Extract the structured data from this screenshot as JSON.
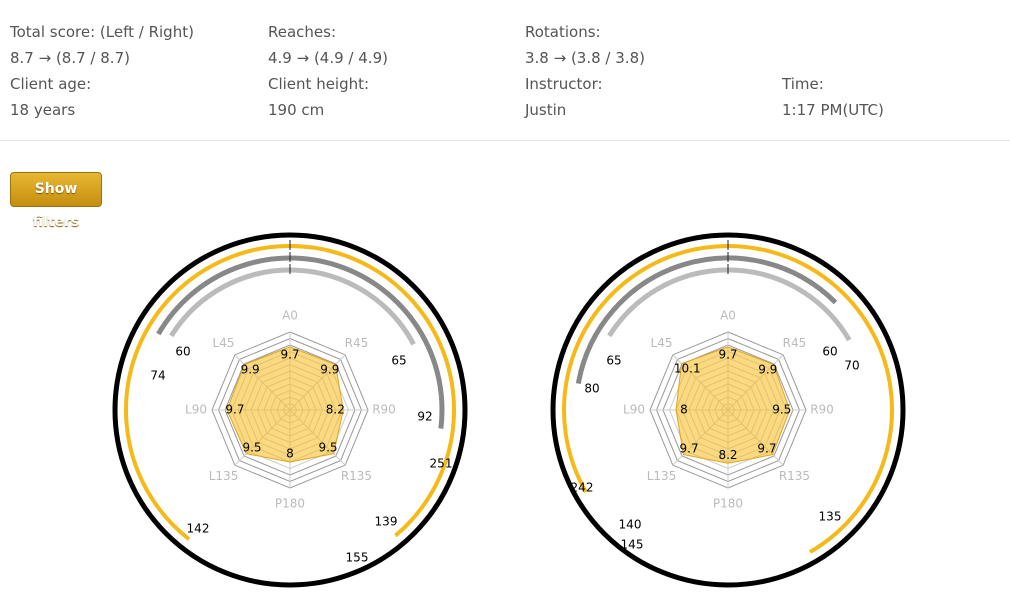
{
  "stats": [
    {
      "label": "Total score: (Left / Right)",
      "value": "8.7 → (8.7 / 8.7)"
    },
    {
      "label": "Reaches:",
      "value": "4.9 → (4.9 / 4.9)"
    },
    {
      "label": "Rotations:",
      "value": "3.8 → (3.8 / 3.8)"
    },
    {
      "label": "Client age:",
      "value": "18 years"
    },
    {
      "label": "Client height:",
      "value": "190 cm"
    },
    {
      "label": "Instructor:",
      "value": "Justin"
    },
    {
      "label": "Time:",
      "value": "1:17 PM(UTC)"
    }
  ],
  "button": "Show filters",
  "radars": [
    {
      "axes": [
        "A0",
        "R45",
        "R90",
        "R135",
        "P180",
        "L135",
        "L90",
        "L45"
      ],
      "values": [
        9.7,
        9.9,
        8.2,
        9.5,
        8,
        9.5,
        9.7,
        9.9
      ],
      "arc_labels": [
        60,
        74,
        65,
        92,
        251,
        139,
        155,
        142
      ]
    },
    {
      "axes": [
        "A0",
        "R45",
        "R90",
        "R135",
        "P180",
        "L135",
        "L90",
        "L45"
      ],
      "values": [
        9.7,
        9.9,
        9.5,
        9.7,
        8.2,
        9.7,
        8,
        10.1
      ],
      "arc_labels": [
        65,
        80,
        60,
        70,
        242,
        140,
        145,
        135
      ]
    }
  ]
}
